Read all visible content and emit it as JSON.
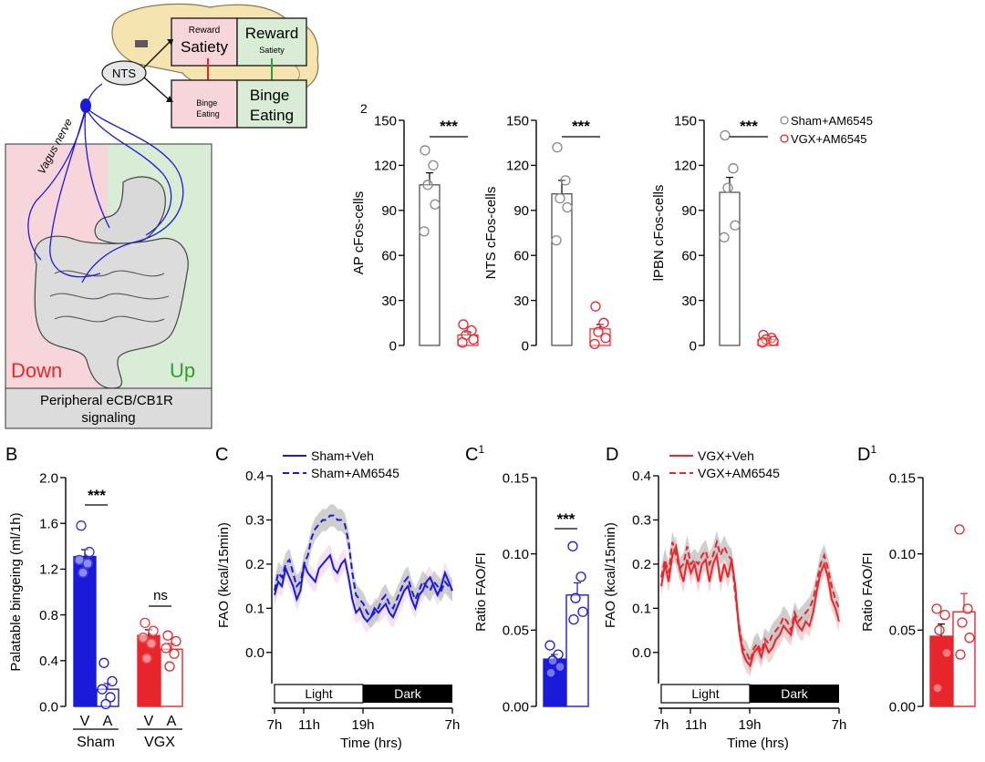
{
  "schematic": {
    "brain": {
      "box1_small_top": "Reward",
      "box1_big": "Satiety",
      "box2_big": "Reward",
      "box2_small": "Satiety",
      "nts": "NTS",
      "box3_small": "Binge\nEating",
      "box4_big": "Binge\nEating"
    },
    "vagus_label": "Vagus nerve",
    "down_label": "Down",
    "up_label": "Up",
    "bottom_label": "Peripheral eCB/CB1R\nsignaling",
    "colors": {
      "down_bg": "#f6d6da",
      "up_bg": "#d8ecd6",
      "nerve": "#1a1adb"
    }
  },
  "panel_labels": {
    "top_a2": "2",
    "b": "B",
    "c": "C",
    "c1": "C",
    "c1_sup": "1",
    "d": "D",
    "d1": "D",
    "d1_sup": "1"
  },
  "legend_top": [
    "Sham+AM6545",
    "VGX+AM6545"
  ],
  "legend_c": [
    "Sham+Veh",
    "Sham+AM6545"
  ],
  "legend_d": [
    "VGX+Veh",
    "VGX+AM6545"
  ],
  "light_label": "Light",
  "dark_label": "Dark",
  "chart_data": [
    {
      "id": "ap",
      "type": "bar",
      "ylabel": "AP cFos-cells",
      "ylim": [
        0,
        150
      ],
      "yticks": [
        "0",
        "30",
        "60",
        "90",
        "120",
        "150"
      ],
      "significance": "***",
      "groups": [
        {
          "name": "Sham+AM6545",
          "mean": 107,
          "sem": 8,
          "points": [
            130,
            120,
            107,
            94,
            76
          ],
          "color": "#888888"
        },
        {
          "name": "VGX+AM6545",
          "mean": 7,
          "sem": 2,
          "points": [
            14,
            10,
            7,
            4,
            2
          ],
          "color": "#e8262b"
        }
      ]
    },
    {
      "id": "nts",
      "type": "bar",
      "ylabel": "NTS cFos-cells",
      "ylim": [
        0,
        150
      ],
      "yticks": [
        "0",
        "30",
        "60",
        "90",
        "120",
        "150"
      ],
      "significance": "***",
      "groups": [
        {
          "name": "Sham+AM6545",
          "mean": 101,
          "sem": 9,
          "points": [
            132,
            110,
            98,
            92,
            70
          ],
          "color": "#888888"
        },
        {
          "name": "VGX+AM6545",
          "mean": 11,
          "sem": 3,
          "points": [
            26,
            15,
            9,
            5,
            1
          ],
          "color": "#e8262b"
        }
      ]
    },
    {
      "id": "lpbn",
      "type": "bar",
      "ylabel": "lPBN cFos-cells",
      "ylim": [
        0,
        150
      ],
      "yticks": [
        "0",
        "30",
        "60",
        "90",
        "120",
        "150"
      ],
      "significance": "***",
      "groups": [
        {
          "name": "Sham+AM6545",
          "mean": 102,
          "sem": 10,
          "points": [
            140,
            118,
            105,
            80,
            72
          ],
          "color": "#888888"
        },
        {
          "name": "VGX+AM6545",
          "mean": 4,
          "sem": 1,
          "points": [
            7,
            5,
            4,
            3,
            2
          ],
          "color": "#e8262b"
        }
      ]
    },
    {
      "id": "b",
      "type": "bar",
      "ylabel": "Palatable bingeing (ml/1h)",
      "ylim": [
        0,
        2.0
      ],
      "yticks": [
        "0.0",
        "0.4",
        "0.8",
        "1.2",
        "1.6",
        "2.0"
      ],
      "categories": [
        "V",
        "A",
        "V",
        "A"
      ],
      "group_labels": [
        "Sham",
        "VGX"
      ],
      "significance": [
        "***",
        "ns"
      ],
      "bars": [
        {
          "mean": 1.31,
          "sem": 0.06,
          "filled": true,
          "color": "#1a1adb",
          "points": [
            1.58,
            1.35,
            1.28,
            1.25,
            1.17
          ]
        },
        {
          "mean": 0.15,
          "sem": 0.05,
          "filled": false,
          "color": "#1a1adb",
          "points": [
            0.38,
            0.22,
            0.15,
            0.08,
            0.02
          ]
        },
        {
          "mean": 0.62,
          "sem": 0.05,
          "filled": true,
          "color": "#e8262b",
          "points": [
            0.73,
            0.66,
            0.6,
            0.55,
            0.42
          ]
        },
        {
          "mean": 0.5,
          "sem": 0.05,
          "filled": false,
          "color": "#e8262b",
          "points": [
            0.62,
            0.57,
            0.51,
            0.46,
            0.35
          ]
        }
      ]
    },
    {
      "id": "c",
      "type": "line",
      "xlabel": "Time (hrs)",
      "ylabel": "FAO (kcal/15min)",
      "ylim": [
        -0.05,
        0.4
      ],
      "yticks": [
        "0.0",
        "0.1",
        "0.2",
        "0.3",
        "0.4"
      ],
      "xticks": [
        "7h",
        "11h",
        "19h",
        "7h"
      ],
      "color": "#1a1adb",
      "series": [
        {
          "name": "Sham+Veh",
          "style": "solid",
          "values": [
            0.13,
            0.16,
            0.15,
            0.19,
            0.17,
            0.15,
            0.12,
            0.14,
            0.2,
            0.18,
            0.17,
            0.16,
            0.19,
            0.2,
            0.21,
            0.22,
            0.19,
            0.18,
            0.2,
            0.21,
            0.17,
            0.12,
            0.09,
            0.1,
            0.08,
            0.07,
            0.08,
            0.1,
            0.09,
            0.1,
            0.11,
            0.09,
            0.08,
            0.1,
            0.12,
            0.14,
            0.15,
            0.12,
            0.1,
            0.13,
            0.14,
            0.16,
            0.17,
            0.15,
            0.13,
            0.15,
            0.18,
            0.16,
            0.14
          ]
        },
        {
          "name": "Sham+AM6545",
          "style": "dashed",
          "values": [
            0.14,
            0.18,
            0.17,
            0.2,
            0.21,
            0.18,
            0.15,
            0.16,
            0.2,
            0.22,
            0.26,
            0.28,
            0.29,
            0.3,
            0.3,
            0.31,
            0.31,
            0.3,
            0.3,
            0.29,
            0.25,
            0.18,
            0.13,
            0.12,
            0.11,
            0.09,
            0.08,
            0.09,
            0.1,
            0.12,
            0.13,
            0.11,
            0.1,
            0.12,
            0.14,
            0.16,
            0.17,
            0.14,
            0.12,
            0.14,
            0.16,
            0.15,
            0.14,
            0.16,
            0.15,
            0.14,
            0.16,
            0.15,
            0.14
          ]
        }
      ]
    },
    {
      "id": "c1",
      "type": "bar",
      "ylabel": "Ratio FAO/FI",
      "ylim": [
        0,
        0.15
      ],
      "yticks": [
        "0.00",
        "0.05",
        "0.10",
        "0.15"
      ],
      "significance": "***",
      "bars": [
        {
          "mean": 0.031,
          "sem": 0.003,
          "filled": true,
          "color": "#1a1adb",
          "points": [
            0.04,
            0.034,
            0.03,
            0.026,
            0.022
          ]
        },
        {
          "mean": 0.073,
          "sem": 0.008,
          "filled": false,
          "color": "#1a1adb",
          "points": [
            0.105,
            0.085,
            0.071,
            0.062,
            0.057
          ]
        }
      ]
    },
    {
      "id": "d",
      "type": "line",
      "xlabel": "Time (hrs)",
      "ylabel": "FAO (kcal/15min)",
      "ylim": [
        -0.05,
        0.4
      ],
      "yticks": [
        "0.0",
        "0.1",
        "0.2",
        "0.3",
        "0.4"
      ],
      "xticks": [
        "7h",
        "11h",
        "19h",
        "7h"
      ],
      "color": "#e8262b",
      "series": [
        {
          "name": "VGX+Veh",
          "style": "solid",
          "values": [
            0.15,
            0.2,
            0.16,
            0.22,
            0.24,
            0.19,
            0.16,
            0.21,
            0.18,
            0.2,
            0.16,
            0.2,
            0.21,
            0.16,
            0.2,
            0.22,
            0.16,
            0.2,
            0.17,
            0.21,
            0.15,
            0.05,
            0.0,
            -0.02,
            -0.03,
            0.0,
            0.01,
            -0.01,
            0.02,
            0.0,
            0.01,
            0.03,
            0.04,
            0.06,
            0.05,
            0.04,
            0.08,
            0.06,
            0.05,
            0.07,
            0.06,
            0.09,
            0.14,
            0.18,
            0.2,
            0.17,
            0.12,
            0.1,
            0.07
          ]
        },
        {
          "name": "VGX+AM6545",
          "style": "dashed",
          "values": [
            0.17,
            0.21,
            0.18,
            0.25,
            0.22,
            0.19,
            0.2,
            0.24,
            0.2,
            0.21,
            0.2,
            0.22,
            0.23,
            0.2,
            0.22,
            0.25,
            0.22,
            0.24,
            0.22,
            0.21,
            0.13,
            0.06,
            0.01,
            0.0,
            -0.02,
            0.01,
            0.02,
            0.0,
            0.03,
            0.02,
            0.04,
            0.05,
            0.06,
            0.08,
            0.07,
            0.05,
            0.09,
            0.07,
            0.08,
            0.09,
            0.1,
            0.12,
            0.16,
            0.2,
            0.22,
            0.19,
            0.15,
            0.12,
            0.1
          ]
        }
      ]
    },
    {
      "id": "d1",
      "type": "bar",
      "ylabel": "Ratio FAO/FI",
      "ylim": [
        0,
        0.15
      ],
      "yticks": [
        "0.00",
        "0.05",
        "0.10",
        "0.15"
      ],
      "bars": [
        {
          "mean": 0.046,
          "sem": 0.008,
          "filled": true,
          "color": "#e8262b",
          "points": [
            0.064,
            0.06,
            0.05,
            0.035,
            0.012
          ]
        },
        {
          "mean": 0.062,
          "sem": 0.012,
          "filled": false,
          "color": "#e8262b",
          "points": [
            0.116,
            0.064,
            0.055,
            0.045,
            0.034
          ]
        }
      ]
    }
  ]
}
